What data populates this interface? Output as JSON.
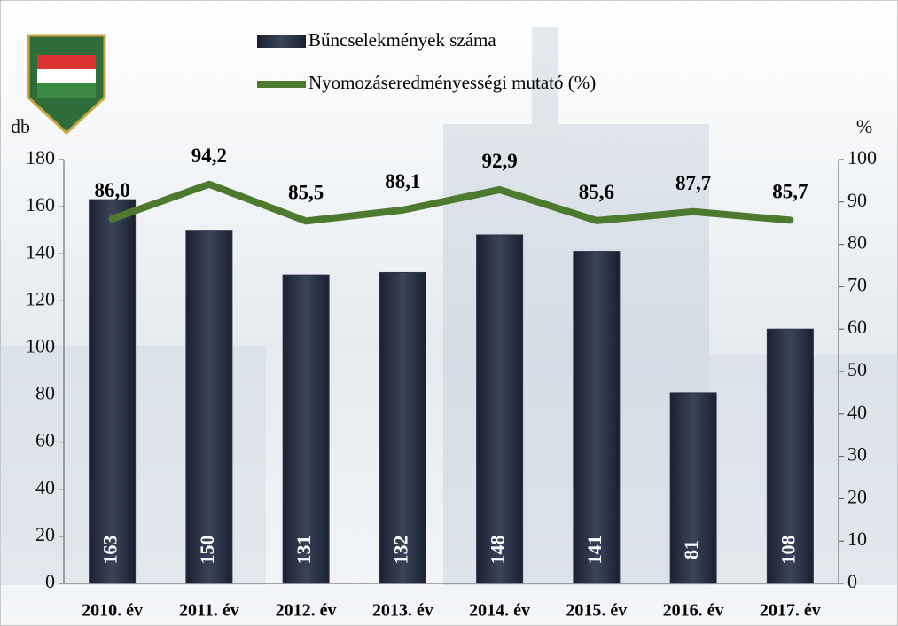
{
  "chart_data": {
    "type": "combo",
    "categories": [
      "2010. év",
      "2011. év",
      "2012. év",
      "2013. év",
      "2014. év",
      "2015. év",
      "2016. év",
      "2017. év"
    ],
    "series": [
      {
        "name": "Bűncselekmények száma",
        "type": "bar",
        "color": "#2b3447",
        "values": [
          163,
          150,
          131,
          132,
          148,
          141,
          81,
          108
        ]
      },
      {
        "name": "Nyomozáseredményességi mutató (%)",
        "type": "line",
        "axis": "y2",
        "color": "#4e7a2f",
        "values": [
          86.0,
          94.2,
          85.5,
          88.1,
          92.9,
          85.6,
          87.7,
          85.7
        ],
        "value_labels": [
          "86,0",
          "94,2",
          "85,5",
          "88,1",
          "92,9",
          "85,6",
          "87,7",
          "85,7"
        ]
      }
    ],
    "ylabel": "db",
    "y2label": "%",
    "ylim": [
      0,
      180
    ],
    "yticks": [
      0,
      20,
      40,
      60,
      80,
      100,
      120,
      140,
      160,
      180
    ],
    "y2lim": [
      0,
      100
    ],
    "y2ticks": [
      0,
      10,
      20,
      30,
      40,
      50,
      60,
      70,
      80,
      90,
      100
    ]
  }
}
